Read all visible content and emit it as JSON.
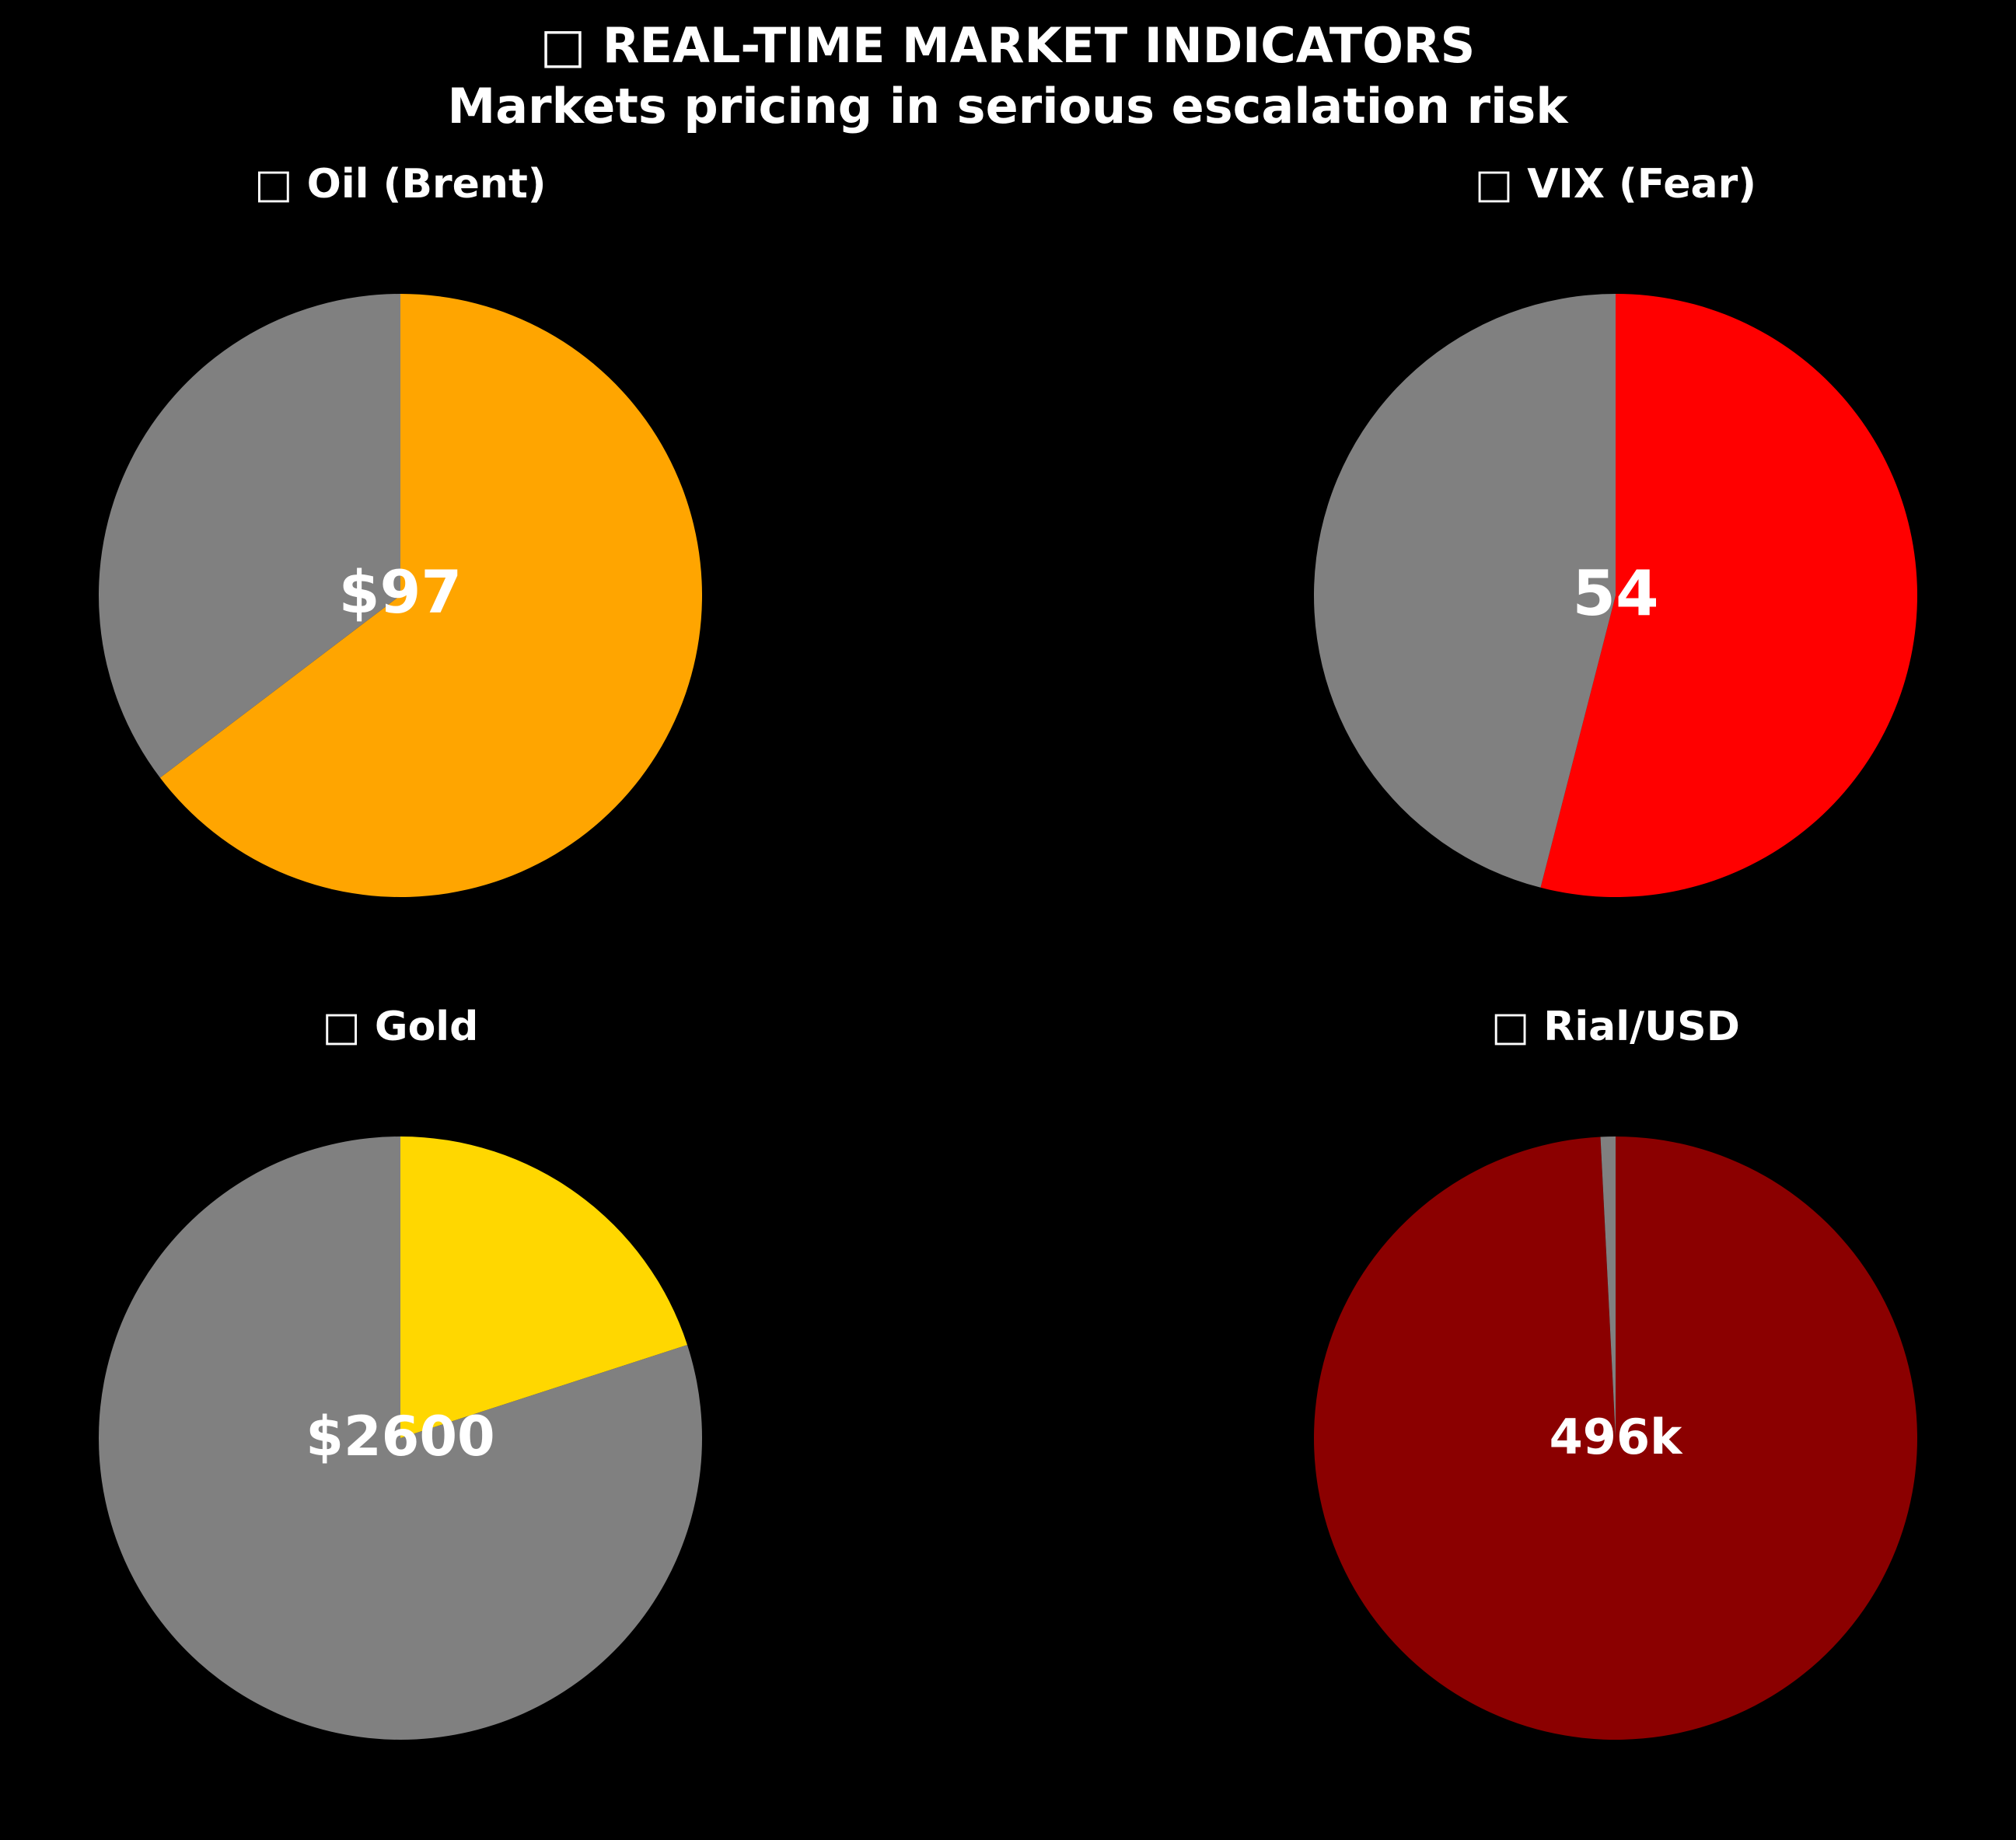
{
  "figure": {
    "title": "□ REAL-TIME MARKET INDICATORS",
    "subtitle": "Markets pricing in serious escalation risk",
    "background": "#000000"
  },
  "chart_data": [
    {
      "type": "pie",
      "title": "□ Oil (Brent)",
      "center_label": "$97",
      "slices": [
        {
          "value": 64.67,
          "color": "#FFA500"
        },
        {
          "value": 35.33,
          "color": "#808080"
        }
      ],
      "start_angle_deg": 90,
      "direction": "clockwise"
    },
    {
      "type": "pie",
      "title": "□ VIX (Fear)",
      "center_label": "54",
      "slices": [
        {
          "value": 54,
          "color": "#FF0000"
        },
        {
          "value": 46,
          "color": "#808080"
        }
      ],
      "start_angle_deg": 90,
      "direction": "clockwise"
    },
    {
      "type": "pie",
      "title": "□ Gold",
      "center_label": "$2600",
      "slices": [
        {
          "value": 20,
          "color": "#FFD700"
        },
        {
          "value": 80,
          "color": "#808080"
        }
      ],
      "start_angle_deg": 90,
      "direction": "clockwise"
    },
    {
      "type": "pie",
      "title": "□ Rial/USD",
      "center_label": "496k",
      "slices": [
        {
          "value": 99.2,
          "color": "#8B0000"
        },
        {
          "value": 0.8,
          "color": "#808080"
        }
      ],
      "start_angle_deg": 90,
      "direction": "clockwise"
    }
  ]
}
